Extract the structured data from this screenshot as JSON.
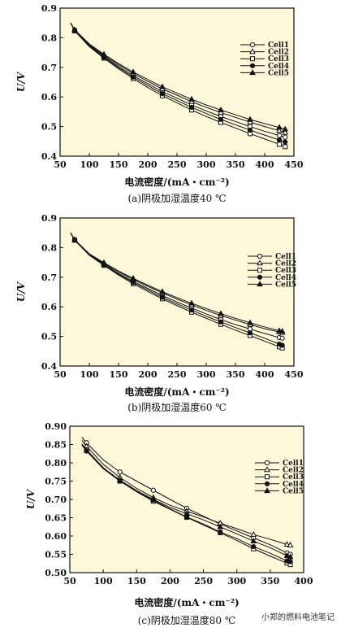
{
  "chart_data": [
    {
      "type": "line",
      "ylabel": "U/V",
      "xlabel": "电流密度/(mA・cm⁻²)",
      "caption": "(a)阴极加湿温度40 ℃",
      "xlim": [
        50,
        450
      ],
      "ylim": [
        0.4,
        0.9
      ],
      "xticks": [
        50,
        100,
        150,
        200,
        250,
        300,
        350,
        400,
        450
      ],
      "yticks": [
        0.4,
        0.5,
        0.6,
        0.7,
        0.8,
        0.9
      ],
      "ytick_labels": [
        "0.4",
        "0.5",
        "0.6",
        "0.7",
        "0.8",
        "0.9"
      ],
      "legend_position": "top-right",
      "background": "#fdf8d9",
      "x": [
        68,
        75,
        100,
        125,
        150,
        175,
        200,
        225,
        250,
        275,
        300,
        325,
        350,
        375,
        400,
        425,
        435
      ],
      "series": [
        {
          "name": "Cell1",
          "marker": "circle-open",
          "values": [
            0.85,
            0.825,
            0.774,
            0.737,
            0.703,
            0.672,
            0.645,
            0.618,
            0.596,
            0.573,
            0.553,
            0.534,
            0.517,
            0.5,
            0.484,
            0.47,
            0.464
          ]
        },
        {
          "name": "Cell2",
          "marker": "triangle-open",
          "values": [
            0.85,
            0.826,
            0.776,
            0.741,
            0.709,
            0.679,
            0.653,
            0.627,
            0.606,
            0.584,
            0.565,
            0.547,
            0.531,
            0.515,
            0.5,
            0.486,
            0.48
          ]
        },
        {
          "name": "Cell3",
          "marker": "square-open",
          "values": [
            0.85,
            0.823,
            0.77,
            0.731,
            0.695,
            0.662,
            0.632,
            0.604,
            0.58,
            0.556,
            0.534,
            0.514,
            0.495,
            0.476,
            0.458,
            0.44,
            0.432
          ]
        },
        {
          "name": "Cell4",
          "marker": "circle-filled",
          "values": [
            0.85,
            0.824,
            0.772,
            0.734,
            0.699,
            0.667,
            0.639,
            0.611,
            0.588,
            0.565,
            0.544,
            0.524,
            0.506,
            0.488,
            0.471,
            0.455,
            0.448
          ]
        },
        {
          "name": "Cell5",
          "marker": "triangle-filled",
          "values": [
            0.85,
            0.827,
            0.779,
            0.744,
            0.713,
            0.684,
            0.659,
            0.634,
            0.613,
            0.592,
            0.573,
            0.556,
            0.54,
            0.524,
            0.51,
            0.497,
            0.491
          ]
        }
      ]
    },
    {
      "type": "line",
      "ylabel": "U/V",
      "xlabel": "电流密度/(mA・cm⁻²)",
      "caption": "(b)阴极加湿温度60 ℃",
      "xlim": [
        50,
        450
      ],
      "ylim": [
        0.4,
        0.9
      ],
      "xticks": [
        50,
        100,
        150,
        200,
        250,
        300,
        350,
        400,
        450
      ],
      "yticks": [
        0.4,
        0.5,
        0.6,
        0.7,
        0.8,
        0.9
      ],
      "ytick_labels": [
        "0.4",
        "0.5",
        "0.6",
        "0.7",
        "0.8",
        "0.9"
      ],
      "legend_position": "top-right",
      "background": "#fdf8d9",
      "x": [
        68,
        75,
        100,
        125,
        150,
        175,
        200,
        225,
        250,
        275,
        300,
        325,
        350,
        375,
        400,
        425,
        430
      ],
      "series": [
        {
          "name": "Cell1",
          "marker": "circle-open",
          "values": [
            0.85,
            0.826,
            0.776,
            0.744,
            0.713,
            0.686,
            0.662,
            0.638,
            0.616,
            0.596,
            0.576,
            0.557,
            0.54,
            0.525,
            0.51,
            0.496,
            0.494
          ]
        },
        {
          "name": "Cell2",
          "marker": "triangle-open",
          "values": [
            0.85,
            0.826,
            0.778,
            0.747,
            0.718,
            0.692,
            0.669,
            0.647,
            0.626,
            0.607,
            0.588,
            0.571,
            0.555,
            0.54,
            0.526,
            0.515,
            0.513
          ]
        },
        {
          "name": "Cell3",
          "marker": "square-open",
          "values": [
            0.85,
            0.825,
            0.774,
            0.74,
            0.707,
            0.678,
            0.652,
            0.627,
            0.604,
            0.582,
            0.561,
            0.541,
            0.521,
            0.503,
            0.484,
            0.465,
            0.461
          ]
        },
        {
          "name": "Cell4",
          "marker": "circle-filled",
          "values": [
            0.85,
            0.825,
            0.775,
            0.742,
            0.71,
            0.682,
            0.657,
            0.632,
            0.61,
            0.589,
            0.568,
            0.549,
            0.53,
            0.512,
            0.494,
            0.474,
            0.47
          ]
        },
        {
          "name": "Cell5",
          "marker": "triangle-filled",
          "values": [
            0.85,
            0.827,
            0.779,
            0.749,
            0.721,
            0.696,
            0.673,
            0.651,
            0.631,
            0.612,
            0.594,
            0.577,
            0.561,
            0.546,
            0.532,
            0.519,
            0.517
          ]
        }
      ]
    },
    {
      "type": "line",
      "ylabel": "U/V",
      "xlabel": "电流密度/(mA・cm⁻²)",
      "caption": "(c)阴极加湿温度80 ℃",
      "xlim": [
        50,
        400
      ],
      "ylim": [
        0.5,
        0.9
      ],
      "xticks": [
        50,
        100,
        150,
        200,
        250,
        300,
        350,
        400
      ],
      "yticks": [
        0.5,
        0.55,
        0.6,
        0.65,
        0.7,
        0.75,
        0.8,
        0.85,
        0.9
      ],
      "ytick_labels": [
        "0.50",
        "0.55",
        "0.60",
        "0.65",
        "0.70",
        "0.75",
        "0.80",
        "0.85",
        "0.90"
      ],
      "legend_position": "top-right",
      "background": "#fdf8d9",
      "x": [
        68,
        75,
        100,
        125,
        150,
        175,
        200,
        225,
        250,
        275,
        300,
        325,
        350,
        375,
        380
      ],
      "series": [
        {
          "name": "Cell1",
          "marker": "circle-open",
          "values": [
            0.87,
            0.855,
            0.808,
            0.775,
            0.75,
            0.725,
            0.7,
            0.676,
            0.654,
            0.633,
            0.614,
            0.595,
            0.576,
            0.554,
            0.55
          ]
        },
        {
          "name": "Cell2",
          "marker": "triangle-open",
          "values": [
            0.862,
            0.845,
            0.796,
            0.76,
            0.73,
            0.705,
            0.684,
            0.668,
            0.652,
            0.635,
            0.62,
            0.604,
            0.591,
            0.577,
            0.575
          ]
        },
        {
          "name": "Cell3",
          "marker": "square-open",
          "values": [
            0.852,
            0.836,
            0.787,
            0.75,
            0.721,
            0.695,
            0.673,
            0.651,
            0.63,
            0.609,
            0.588,
            0.565,
            0.545,
            0.526,
            0.522
          ]
        },
        {
          "name": "Cell4",
          "marker": "circle-filled",
          "values": [
            0.848,
            0.832,
            0.784,
            0.75,
            0.723,
            0.698,
            0.674,
            0.652,
            0.633,
            0.611,
            0.593,
            0.571,
            0.553,
            0.532,
            0.53
          ]
        },
        {
          "name": "Cell5",
          "marker": "triangle-filled",
          "values": [
            0.85,
            0.834,
            0.786,
            0.753,
            0.724,
            0.7,
            0.678,
            0.661,
            0.644,
            0.625,
            0.606,
            0.586,
            0.568,
            0.546,
            0.543
          ]
        }
      ]
    }
  ],
  "watermark": "小郑的燃料电池笔记"
}
